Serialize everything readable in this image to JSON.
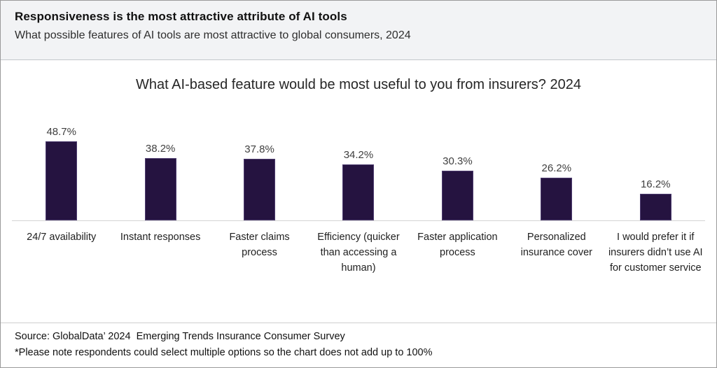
{
  "header": {
    "title": "Responsiveness is the most attractive attribute of AI tools",
    "subtitle": "What possible features of AI tools are most attractive to global consumers, 2024"
  },
  "chart_data": {
    "type": "bar",
    "title": "What AI-based feature would be most useful to you from insurers? 2024",
    "categories": [
      "24/7 availability",
      "Instant responses",
      "Faster claims process",
      "Efficiency (quicker than accessing a human)",
      "Faster application process",
      "Personalized insurance cover",
      "I would prefer it if insurers didn’t use AI for customer service"
    ],
    "values": [
      48.7,
      38.2,
      37.8,
      34.2,
      30.3,
      26.2,
      16.2
    ],
    "value_labels": [
      "48.7%",
      "38.2%",
      "37.8%",
      "34.2%",
      "30.3%",
      "26.2%",
      "16.2%"
    ],
    "xlabel": "",
    "ylabel": "",
    "ylim": [
      0,
      55
    ],
    "grid": false,
    "legend": null,
    "data_labels_position": "above-bar",
    "bar_color": "#251340",
    "bar_border_color": "#4e3d70",
    "axis_line_color": "#d4d4d4"
  },
  "footer": {
    "source": "Source: GlobalData’ 2024  Emerging Trends Insurance Consumer Survey",
    "note": "*Please note respondents could select multiple options so the chart does not add up to 100%"
  }
}
